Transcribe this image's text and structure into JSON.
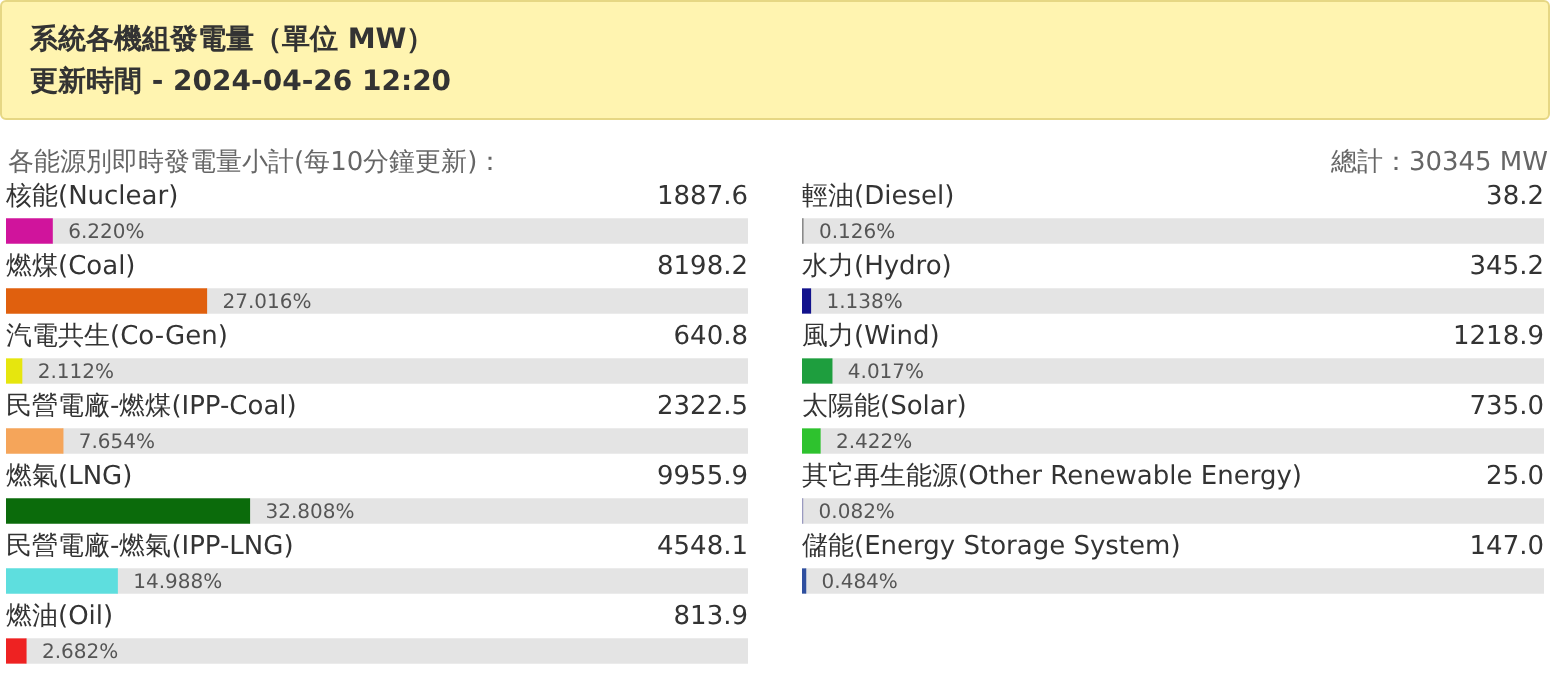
{
  "chart_data": [
    {
      "type": "bar",
      "orientation": "horizontal",
      "stacked": true,
      "title": "系統各機組發電量（單位 MW）",
      "subtitle": "更新時間 - 2024-04-26 12:20",
      "categories": [
        "核能(Nuclear)",
        "燃煤(Coal)",
        "汽電共生(Co-Gen)",
        "民營電廠-燃煤(IPP-Coal)",
        "燃氣(LNG)",
        "民營電廠-燃氣(IPP-LNG)",
        "燃油(Oil)"
      ],
      "series": [
        {
          "values": [
            6.22,
            27.016,
            2.112,
            7.654,
            32.808,
            14.988,
            2.682
          ],
          "value_labels": [
            "6.220%",
            "27.016%",
            "2.112%",
            "7.654%",
            "32.808%",
            "14.988%",
            "2.682%"
          ],
          "colors": [
            "#d0149c",
            "#e0600e",
            "#e6e60e",
            "#f5a55a",
            "#0b6b0b",
            "#5edede",
            "#ee2222"
          ]
        },
        {
          "values": [
            93.78,
            72.984,
            97.888,
            92.346,
            67.192,
            85.012,
            97.318
          ],
          "color": "#e4e4e4"
        }
      ],
      "xlim": [
        0,
        100
      ],
      "tick_labels": "y",
      "annotations": [
        "各能源別即時發電量小計(每10分鐘更新)：",
        "1887.6",
        "8198.2",
        "640.8",
        "2322.5",
        "9955.9",
        "4548.1",
        "813.9"
      ]
    },
    {
      "type": "bar",
      "orientation": "horizontal",
      "stacked": true,
      "categories": [
        "輕油(Diesel)",
        "水力(Hydro)",
        "風力(Wind)",
        "太陽能(Solar)",
        "其它再生能源(Other Renewable Energy)",
        "儲能(Energy Storage System)"
      ],
      "series": [
        {
          "values": [
            0.126,
            1.138,
            4.017,
            2.422,
            0.082,
            0.484
          ],
          "value_labels": [
            "0.126%",
            "1.138%",
            "4.017%",
            "2.422%",
            "0.082%",
            "0.484%"
          ],
          "colors": [
            "#8a8a8a",
            "#12128c",
            "#1e9e3e",
            "#2ec22e",
            "#9a9ac0",
            "#2f4f9f"
          ]
        },
        {
          "values": [
            99.874,
            98.862,
            95.983,
            97.578,
            99.918,
            99.516
          ],
          "color": "#e4e4e4"
        }
      ],
      "xlim": [
        0,
        100
      ],
      "tick_labels": "y",
      "annotations": [
        "總計：30345 MW",
        "38.2",
        "345.2",
        "1218.9",
        "735.0",
        "25.0",
        "147.0"
      ]
    }
  ]
}
